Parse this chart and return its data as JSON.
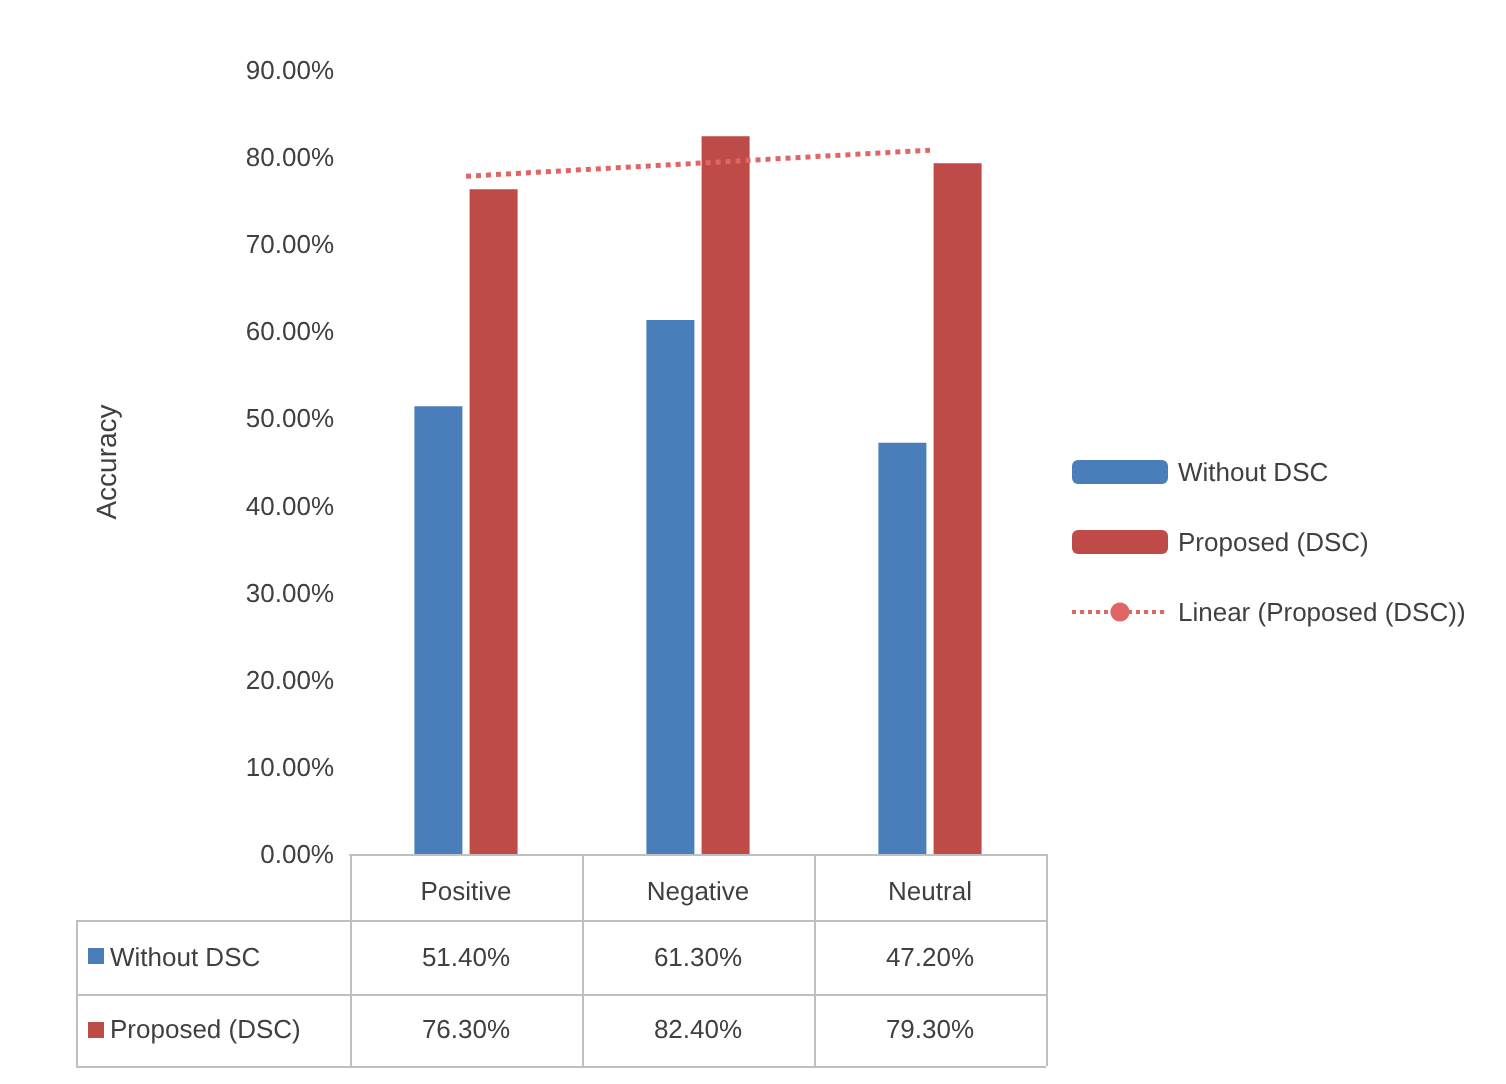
{
  "chart_data": {
    "type": "bar",
    "ylabel": "Accuracy",
    "categories": [
      "Positive",
      "Negative",
      "Neutral"
    ],
    "series": [
      {
        "name": "Without DSC",
        "color": "#4a7ebb",
        "values": [
          51.4,
          61.3,
          47.2
        ],
        "value_labels": [
          "51.40%",
          "61.30%",
          "47.20%"
        ]
      },
      {
        "name": "Proposed (DSC)",
        "color": "#be4b48",
        "values": [
          76.3,
          82.4,
          79.3
        ],
        "value_labels": [
          "76.30%",
          "82.40%",
          "79.30%"
        ]
      },
      {
        "name": "Linear (Proposed (DSC))",
        "type": "line",
        "color": "#e06666",
        "line_style": "dotted",
        "x": [
          "Positive",
          "Neutral"
        ],
        "values": [
          77.8,
          80.8
        ]
      }
    ],
    "ylim": [
      0,
      90
    ],
    "yticks": [
      {
        "value": 0,
        "label": "0.00%"
      },
      {
        "value": 10,
        "label": "10.00%"
      },
      {
        "value": 20,
        "label": "20.00%"
      },
      {
        "value": 30,
        "label": "30.00%"
      },
      {
        "value": 40,
        "label": "40.00%"
      },
      {
        "value": 50,
        "label": "50.00%"
      },
      {
        "value": 60,
        "label": "60.00%"
      },
      {
        "value": 70,
        "label": "70.00%"
      },
      {
        "value": 80,
        "label": "80.00%"
      },
      {
        "value": 90,
        "label": "90.00%"
      }
    ],
    "legend": "right"
  }
}
